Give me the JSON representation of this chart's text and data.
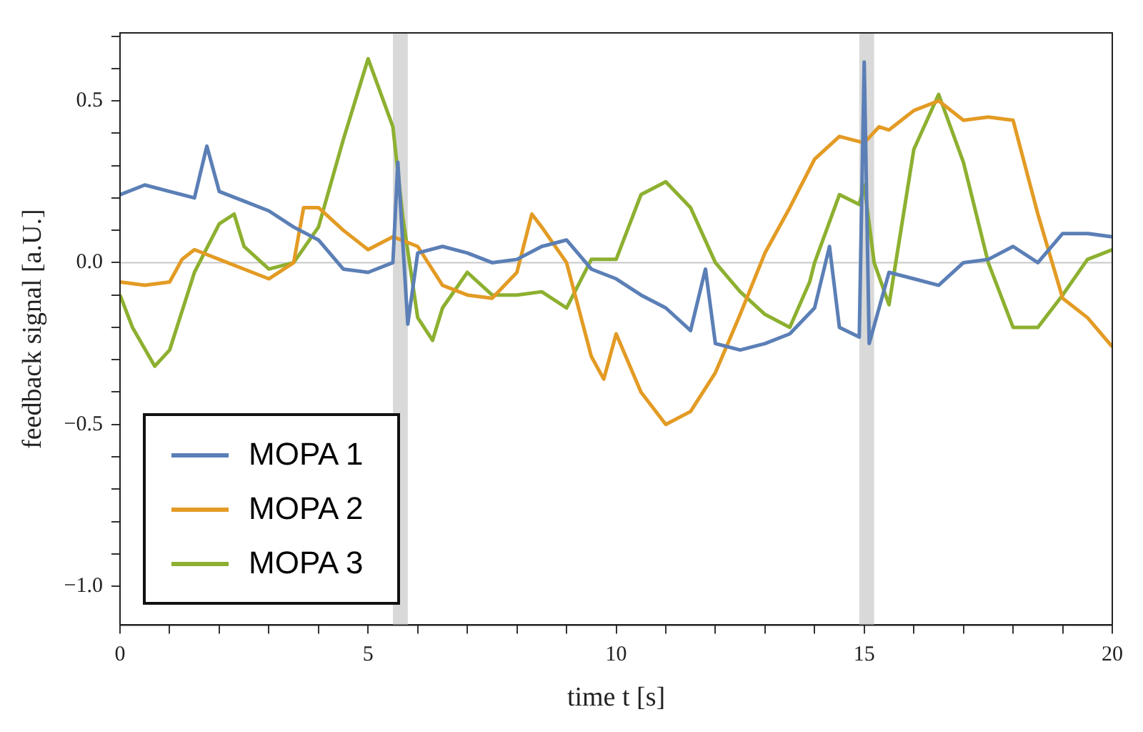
{
  "chart_data": {
    "type": "line",
    "xlabel": "time t [s]",
    "ylabel": "feedback signal [a.U.]",
    "xlim": [
      0,
      20
    ],
    "ylim": [
      -1.12,
      0.71
    ],
    "xticks": [
      0,
      {
        "value": 1,
        "label": null
      },
      {
        "value": 2,
        "label": null
      },
      {
        "value": 3,
        "label": null
      },
      {
        "value": 4,
        "label": null
      },
      5,
      {
        "value": 6,
        "label": null
      },
      {
        "value": 7,
        "label": null
      },
      {
        "value": 8,
        "label": null
      },
      {
        "value": 9,
        "label": null
      },
      10,
      {
        "value": 11,
        "label": null
      },
      {
        "value": 12,
        "label": null
      },
      {
        "value": 13,
        "label": null
      },
      {
        "value": 14,
        "label": null
      },
      15,
      {
        "value": 16,
        "label": null
      },
      {
        "value": 17,
        "label": null
      },
      {
        "value": 18,
        "label": null
      },
      {
        "value": 19,
        "label": null
      },
      20
    ],
    "yticks": [
      {
        "value": -1,
        "label": "−1.0"
      },
      {
        "value": -0.9,
        "label": null
      },
      {
        "value": -0.8,
        "label": null
      },
      {
        "value": -0.7,
        "label": null
      },
      {
        "value": -0.6,
        "label": null
      },
      {
        "value": -0.5,
        "label": "−0.5"
      },
      {
        "value": -0.4,
        "label": null
      },
      {
        "value": -0.3,
        "label": null
      },
      {
        "value": -0.2,
        "label": null
      },
      {
        "value": -0.1,
        "label": null
      },
      {
        "value": 0,
        "label": "0.0"
      },
      {
        "value": 0.1,
        "label": null
      },
      {
        "value": 0.2,
        "label": null
      },
      {
        "value": 0.3,
        "label": null
      },
      {
        "value": 0.4,
        "label": null
      },
      0.5,
      {
        "value": 0.6,
        "label": null
      },
      {
        "value": 0.7,
        "label": null
      }
    ],
    "grid": false,
    "legend": "bottom left",
    "ref_lines": [
      {
        "axis": "y",
        "value": 0,
        "color": "#c8c8c8"
      }
    ],
    "bands": [
      {
        "axis": "x",
        "from": 5.5,
        "to": 5.8,
        "color": "#d9d9d9"
      },
      {
        "axis": "x",
        "from": 14.9,
        "to": 15.2,
        "color": "#d9d9d9"
      }
    ],
    "series": [
      {
        "name": "MOPA 1",
        "color": "#5b7fb6",
        "x": [
          0,
          0.5,
          1,
          1.5,
          1.75,
          2,
          2.5,
          3,
          3.5,
          4,
          4.5,
          5,
          5.5,
          5.6,
          5.8,
          6,
          6.5,
          7,
          7.5,
          8,
          8.5,
          9,
          9.5,
          10,
          10.5,
          11,
          11.5,
          11.8,
          12,
          12.5,
          13,
          13.5,
          14,
          14.3,
          14.5,
          14.9,
          15,
          15.1,
          15.5,
          16,
          16.5,
          17,
          17.5,
          18,
          18.5,
          19,
          19.5,
          20
        ],
        "values": [
          0.21,
          0.24,
          0.22,
          0.2,
          0.36,
          0.22,
          0.19,
          0.16,
          0.11,
          0.07,
          -0.02,
          -0.03,
          0,
          0.31,
          -0.19,
          0.03,
          0.05,
          0.03,
          0,
          0.01,
          0.05,
          0.07,
          -0.02,
          -0.05,
          -0.1,
          -0.14,
          -0.21,
          -0.02,
          -0.25,
          -0.27,
          -0.25,
          -0.22,
          -0.14,
          0.05,
          -0.2,
          -0.23,
          0.62,
          -0.25,
          -0.03,
          -0.05,
          -0.07,
          0,
          0.01,
          0.05,
          0,
          0.09,
          0.09,
          0.08
        ]
      },
      {
        "name": "MOPA 2",
        "color": "#e39b24",
        "x": [
          0,
          0.5,
          1,
          1.25,
          1.5,
          2,
          2.5,
          3,
          3.5,
          3.7,
          4,
          4.5,
          5,
          5.5,
          6,
          6.5,
          7,
          7.5,
          8,
          8.3,
          8.5,
          9,
          9.5,
          9.75,
          10,
          10.5,
          11,
          11.5,
          12,
          12.5,
          13,
          13.5,
          14,
          14.5,
          15,
          15.3,
          15.5,
          16,
          16.5,
          17,
          17.5,
          18,
          18.5,
          19,
          19.5,
          20
        ],
        "values": [
          -0.06,
          -0.07,
          -0.06,
          0.01,
          0.04,
          0.01,
          -0.02,
          -0.05,
          0,
          0.17,
          0.17,
          0.1,
          0.04,
          0.08,
          0.05,
          -0.07,
          -0.1,
          -0.11,
          -0.03,
          0.15,
          0.11,
          0,
          -0.29,
          -0.36,
          -0.22,
          -0.4,
          -0.5,
          -0.46,
          -0.34,
          -0.16,
          0.03,
          0.17,
          0.32,
          0.39,
          0.37,
          0.42,
          0.41,
          0.47,
          0.5,
          0.44,
          0.45,
          0.44,
          0.15,
          -0.11,
          -0.17,
          -0.26
        ]
      },
      {
        "name": "MOPA 3",
        "color": "#8db030",
        "x": [
          0,
          0.25,
          0.7,
          1,
          1.5,
          2,
          2.3,
          2.5,
          3,
          3.5,
          4,
          4.5,
          5,
          5.5,
          5.7,
          6,
          6.3,
          6.5,
          7,
          7.5,
          8,
          8.5,
          9,
          9.5,
          10,
          10.5,
          11,
          11.5,
          12,
          12.5,
          13,
          13.5,
          13.9,
          14,
          14.5,
          14.9,
          15,
          15.2,
          15.5,
          16,
          16.5,
          17,
          17.5,
          18,
          18.5,
          19,
          19.5,
          20
        ],
        "values": [
          -0.1,
          -0.2,
          -0.32,
          -0.27,
          -0.03,
          0.12,
          0.15,
          0.05,
          -0.02,
          0,
          0.11,
          0.38,
          0.63,
          0.42,
          0.14,
          -0.17,
          -0.24,
          -0.14,
          -0.03,
          -0.1,
          -0.1,
          -0.09,
          -0.14,
          0.01,
          0.01,
          0.21,
          0.25,
          0.17,
          0,
          -0.09,
          -0.16,
          -0.2,
          -0.06,
          0,
          0.21,
          0.18,
          0.24,
          0,
          -0.13,
          0.35,
          0.52,
          0.31,
          0,
          -0.2,
          -0.2,
          -0.1,
          0.01,
          0.04
        ]
      }
    ]
  }
}
